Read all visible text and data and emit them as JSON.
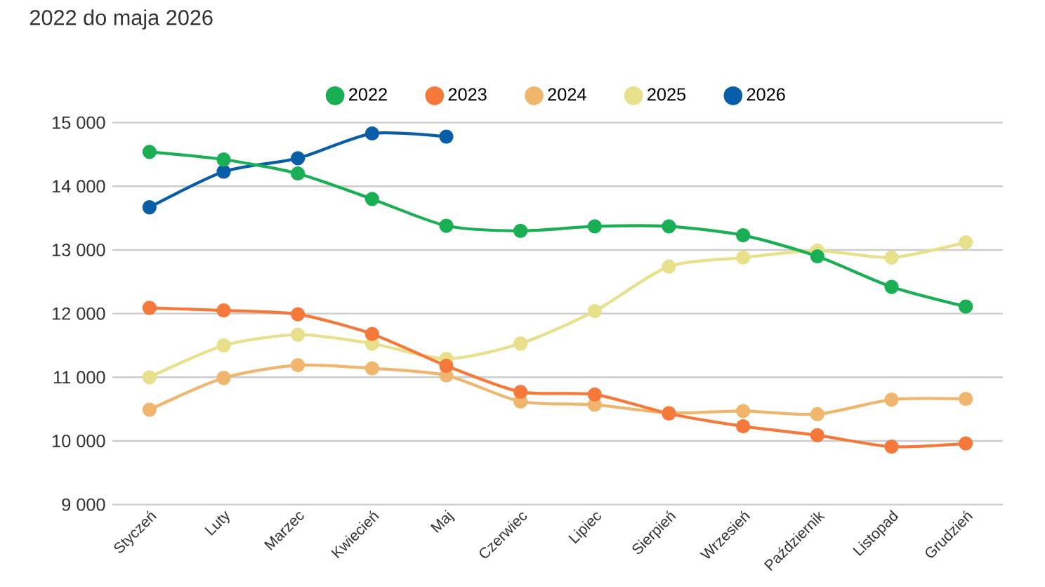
{
  "chart_data": {
    "type": "line",
    "title": "2022 do maja 2026",
    "categories": [
      "Styczeń",
      "Luty",
      "Marzec",
      "Kwiecień",
      "Maj",
      "Czerwiec",
      "Lipiec",
      "Sierpień",
      "Wrzesień",
      "Październik",
      "Listopad",
      "Grudzień"
    ],
    "series": [
      {
        "name": "2022",
        "color": "#1aaf54",
        "values": [
          14540,
          14420,
          14200,
          13800,
          13380,
          13300,
          13370,
          13370,
          13230,
          12900,
          12420,
          12110
        ]
      },
      {
        "name": "2023",
        "color": "#f5793a",
        "values": [
          12090,
          12050,
          11990,
          11680,
          11180,
          10770,
          10730,
          10430,
          10230,
          10090,
          9910,
          9960
        ]
      },
      {
        "name": "2024",
        "color": "#f0b66e",
        "values": [
          10490,
          10990,
          11190,
          11140,
          11030,
          10620,
          10570,
          10440,
          10470,
          10420,
          10650,
          10660
        ]
      },
      {
        "name": "2025",
        "color": "#e8e08a",
        "values": [
          11000,
          11500,
          11670,
          11530,
          11290,
          11530,
          12040,
          12740,
          12880,
          12990,
          12880,
          13120
        ]
      },
      {
        "name": "2026",
        "color": "#0a5ea8",
        "values": [
          13670,
          14230,
          14440,
          14830,
          14780,
          null,
          null,
          null,
          null,
          null,
          null,
          null
        ]
      }
    ],
    "ylim": [
      9000,
      15000
    ],
    "yticks": [
      {
        "value": 9000,
        "label": "9 000"
      },
      {
        "value": 10000,
        "label": "10 000"
      },
      {
        "value": 11000,
        "label": "11 000"
      },
      {
        "value": 12000,
        "label": "12 000"
      },
      {
        "value": 13000,
        "label": "13 000"
      },
      {
        "value": 14000,
        "label": "14 000"
      },
      {
        "value": 15000,
        "label": "15 000"
      }
    ],
    "grid": "y",
    "legend": "top",
    "marker": "circle",
    "line_style": "solid"
  }
}
